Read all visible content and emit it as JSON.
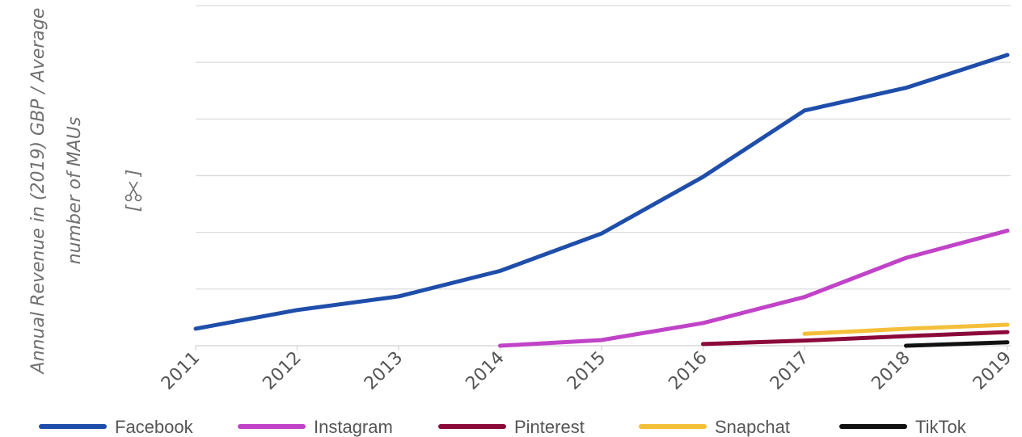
{
  "chart_data": {
    "type": "line",
    "ylabel_lines": [
      "Annual Revenue in (2019) GBP / Average",
      "number of MAUs"
    ],
    "yunit_icon": "scissors-icon",
    "categories": [
      "2011",
      "2012",
      "2013",
      "2014",
      "2015",
      "2016",
      "2017",
      "2018",
      "2019"
    ],
    "ylim": [
      0,
      6
    ],
    "y_gridlines": [
      0,
      1,
      2,
      3,
      4,
      5,
      6
    ],
    "y_tick_labels_shown": false,
    "grid": true,
    "legend_position": "bottom",
    "series": [
      {
        "name": "Facebook",
        "color": "#1f4eaa",
        "values": [
          0.3,
          0.63,
          0.87,
          1.32,
          1.98,
          2.98,
          4.15,
          4.55,
          5.13
        ]
      },
      {
        "name": "Instagram",
        "color": "#c043c8",
        "values": [
          null,
          null,
          null,
          0.0,
          0.1,
          0.4,
          0.86,
          1.55,
          2.03
        ]
      },
      {
        "name": "Pinterest",
        "color": "#8b0a3a",
        "values": [
          null,
          null,
          null,
          null,
          null,
          0.03,
          0.09,
          0.17,
          0.24
        ]
      },
      {
        "name": "Snapchat",
        "color": "#f4c03a",
        "values": [
          null,
          null,
          null,
          null,
          null,
          null,
          0.21,
          0.3,
          0.37
        ]
      },
      {
        "name": "TikTok",
        "color": "#111111",
        "values": [
          null,
          null,
          null,
          null,
          null,
          null,
          null,
          0.0,
          0.06
        ]
      }
    ]
  }
}
